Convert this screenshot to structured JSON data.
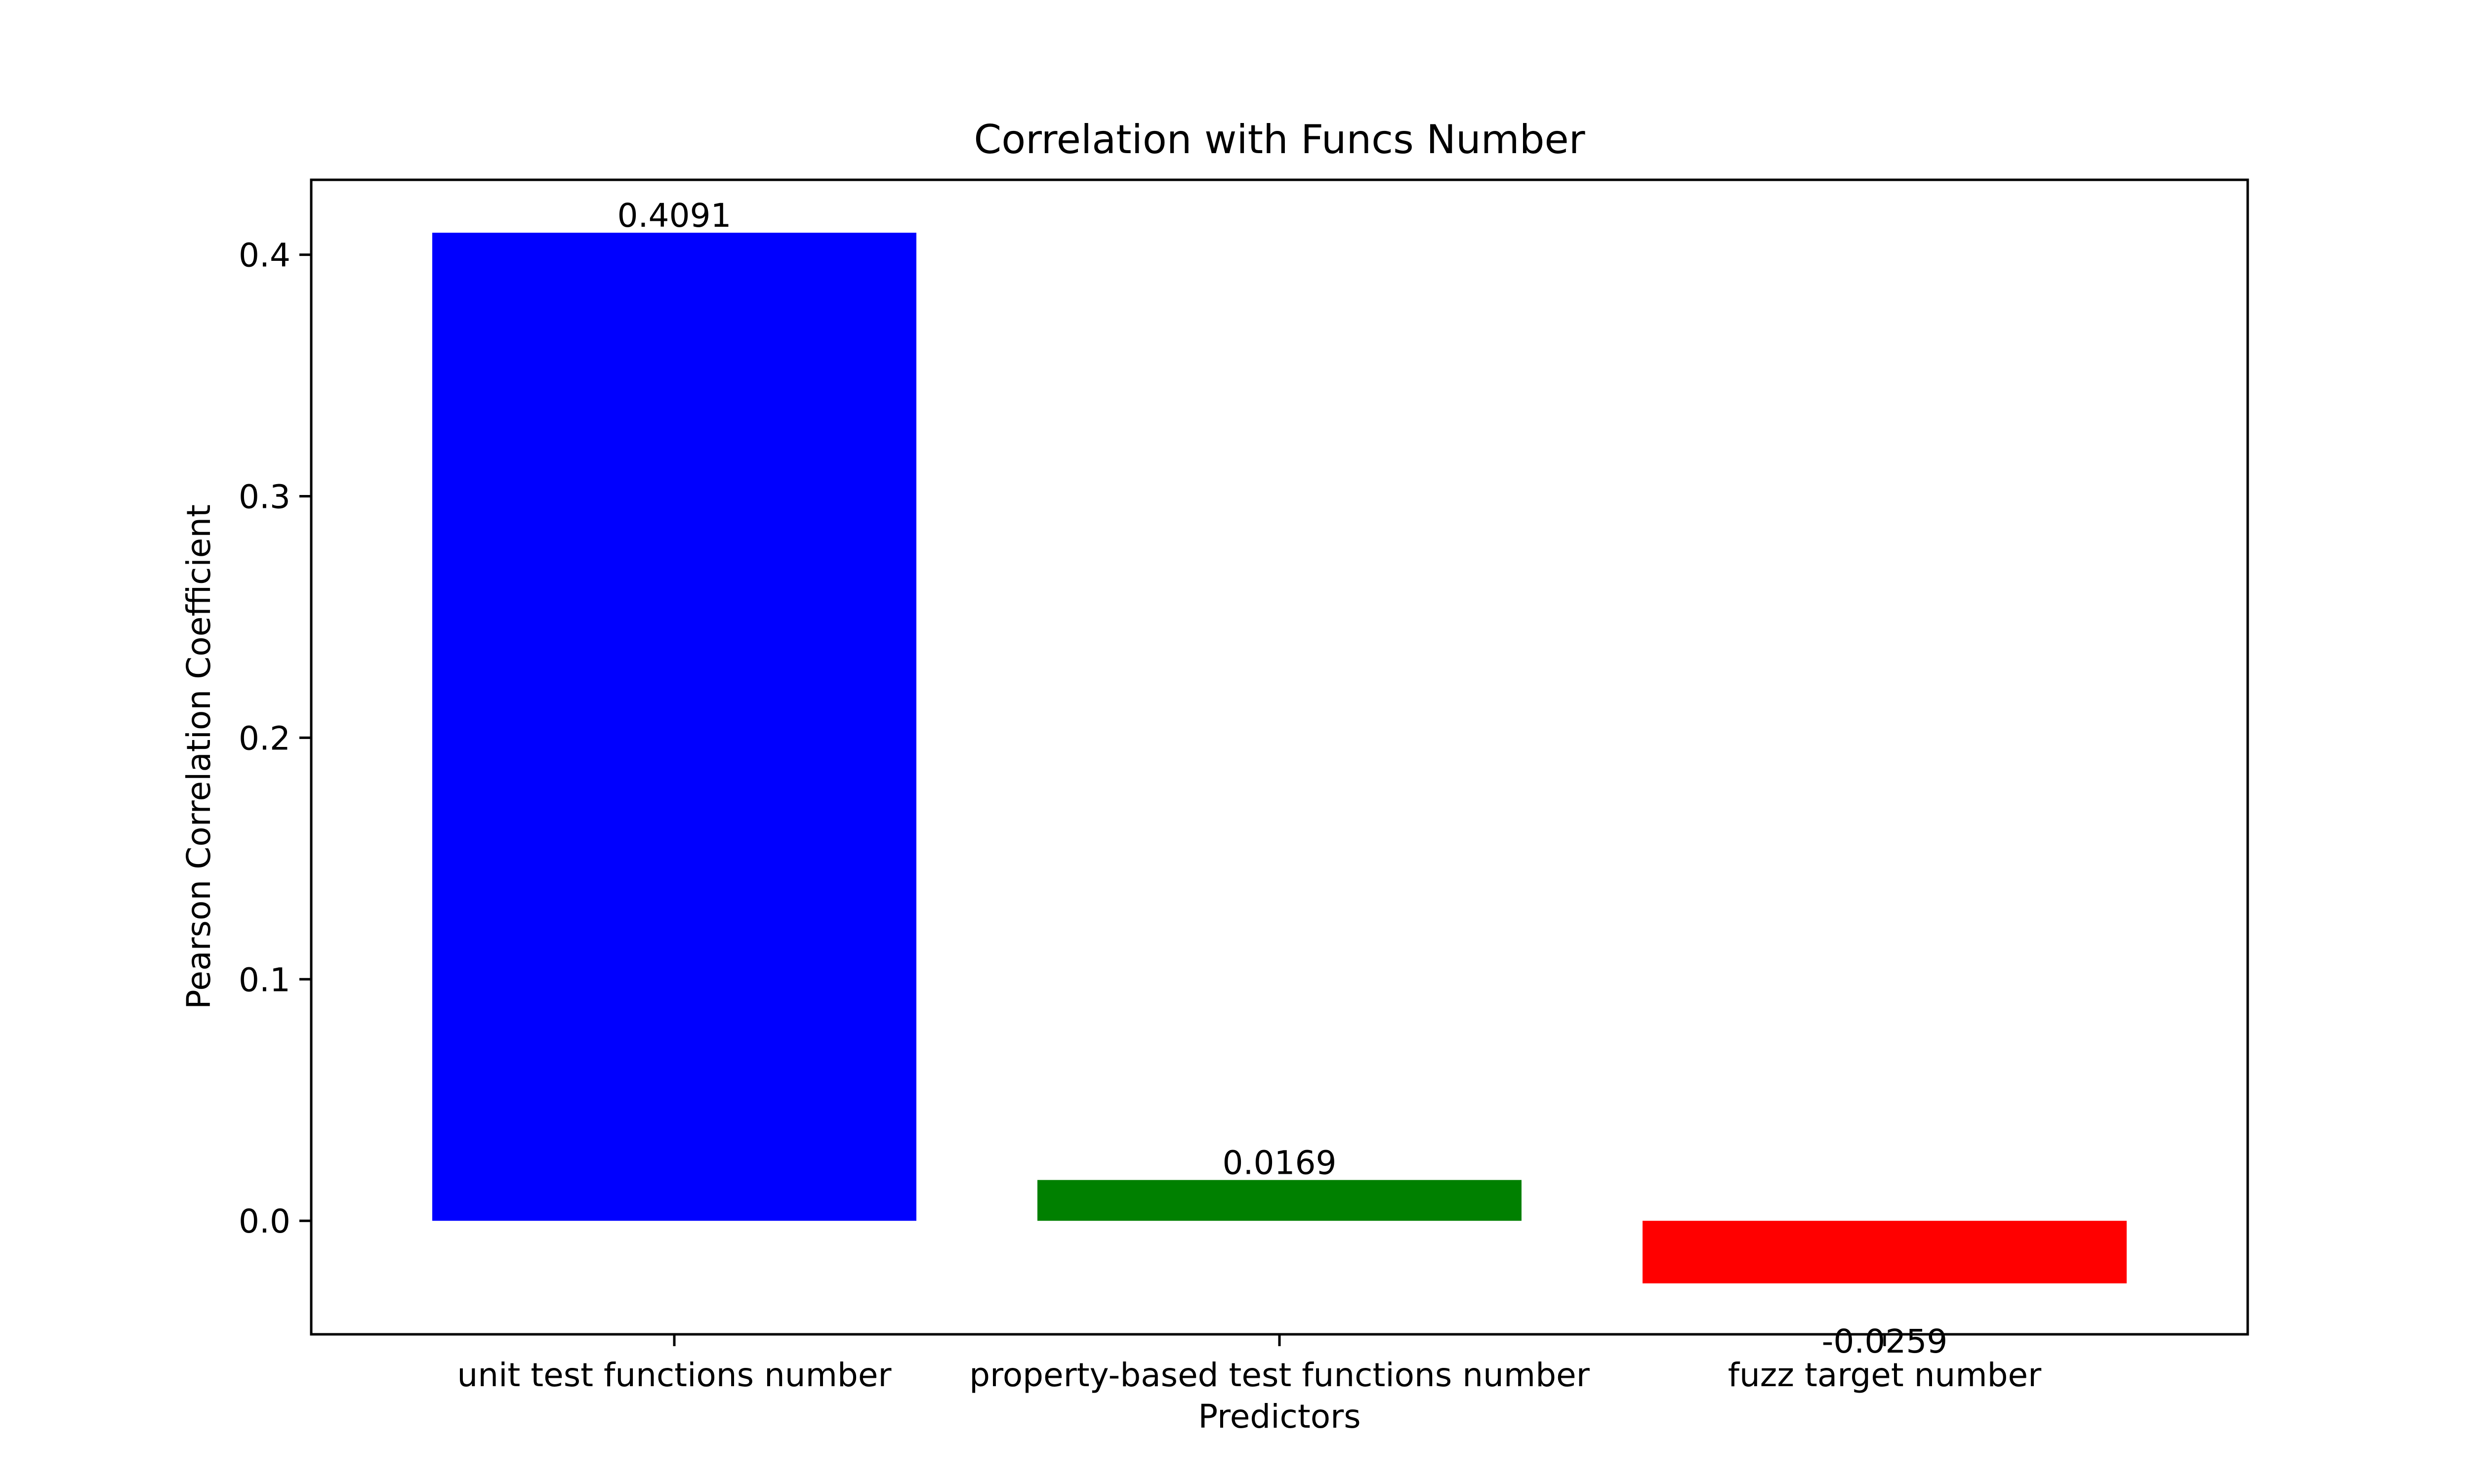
{
  "chart_data": {
    "type": "bar",
    "title": "Correlation with Funcs Number",
    "xlabel": "Predictors",
    "ylabel": "Pearson Correlation Coefficient",
    "categories": [
      "unit test functions number",
      "property-based test functions number",
      "fuzz target number"
    ],
    "values": [
      0.4091,
      0.0169,
      -0.0259
    ],
    "value_labels": [
      "0.4091",
      "0.0169",
      "-0.0259"
    ],
    "colors": [
      "#0000ff",
      "#008000",
      "#ff0000"
    ],
    "ylim": [
      -0.047,
      0.431
    ],
    "yticks": [
      0.0,
      0.1,
      0.2,
      0.3,
      0.4
    ],
    "ytick_labels": [
      "0.0",
      "0.1",
      "0.2",
      "0.3",
      "0.4"
    ],
    "grid": false,
    "legend": false
  }
}
